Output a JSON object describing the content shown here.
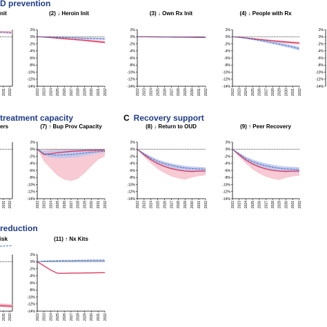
{
  "sections": {
    "a_suffix": "D prevention",
    "b_suffix": "treatment capacity",
    "c_letter": "C",
    "c_title": "Recovery support",
    "d_suffix": "reduction"
  },
  "colors": {
    "intervention": "#d6335a",
    "intervention_band": "#f4b8c6",
    "comparison": "#3a6fc4",
    "comparison_band": "#b9c6ec",
    "baseline": "#000000"
  },
  "chart_data": [
    {
      "type": "line",
      "title": "(2) ↓ Heroin Init",
      "x": [
        2022,
        2023,
        2024,
        2025,
        2026,
        2027,
        2028,
        2029,
        2030,
        2031,
        2032
      ],
      "y_ticks": [
        "2%",
        "0%",
        "-2%",
        "-4%",
        "-6%",
        "-8%",
        "-10%",
        "-12%",
        "-14%"
      ],
      "ylim": [
        -14,
        2
      ],
      "grid": false,
      "series": [
        {
          "role": "intervention",
          "values": [
            0,
            -0.1,
            -0.25,
            -0.4,
            -0.55,
            -0.7,
            -0.85,
            -1.0,
            -1.2,
            -1.4,
            -1.6
          ],
          "band_low": [
            0,
            -0.15,
            -0.35,
            -0.55,
            -0.75,
            -0.95,
            -1.15,
            -1.35,
            -1.55,
            -1.75,
            -1.95
          ],
          "band_high": [
            0,
            -0.05,
            -0.15,
            -0.25,
            -0.35,
            -0.45,
            -0.55,
            -0.65,
            -0.8,
            -0.95,
            -1.1
          ]
        },
        {
          "role": "comparison",
          "values": [
            0,
            -0.05,
            -0.1,
            -0.15,
            -0.2,
            -0.3,
            -0.35,
            -0.45,
            -0.5,
            -0.55,
            -0.6
          ],
          "band_low": [
            0,
            -0.1,
            -0.2,
            -0.3,
            -0.4,
            -0.5,
            -0.6,
            -0.7,
            -0.75,
            -0.8,
            -0.85
          ],
          "band_high": [
            0,
            0,
            -0.05,
            -0.05,
            -0.05,
            -0.1,
            -0.15,
            -0.2,
            -0.25,
            -0.3,
            -0.35
          ]
        }
      ]
    },
    {
      "type": "line",
      "title": "(3) ↓ Own Rx Init",
      "x": [
        2022,
        2023,
        2024,
        2025,
        2026,
        2027,
        2028,
        2029,
        2030,
        2031,
        2032
      ],
      "y_ticks": [
        "2%",
        "0%",
        "-2%",
        "-4%",
        "-6%",
        "-8%",
        "-10%",
        "-12%",
        "-14%"
      ],
      "ylim": [
        -14,
        2
      ],
      "grid": false,
      "series": [
        {
          "role": "intervention",
          "values": [
            0,
            -0.02,
            -0.04,
            -0.06,
            -0.08,
            -0.1,
            -0.12,
            -0.14,
            -0.16,
            -0.18,
            -0.2
          ],
          "band_low": [
            0,
            -0.04,
            -0.07,
            -0.1,
            -0.13,
            -0.16,
            -0.19,
            -0.22,
            -0.25,
            -0.28,
            -0.3
          ],
          "band_high": [
            0,
            -0.01,
            -0.02,
            -0.03,
            -0.04,
            -0.05,
            -0.06,
            -0.07,
            -0.08,
            -0.09,
            -0.1
          ]
        },
        {
          "role": "comparison",
          "values": [
            0,
            -0.01,
            -0.02,
            -0.03,
            -0.04,
            -0.05,
            -0.06,
            -0.07,
            -0.08,
            -0.09,
            -0.1
          ],
          "band_low": [
            0,
            -0.02,
            -0.04,
            -0.06,
            -0.08,
            -0.1,
            -0.12,
            -0.14,
            -0.16,
            -0.18,
            -0.2
          ],
          "band_high": [
            0,
            0,
            0,
            0,
            0,
            0,
            0,
            0,
            0,
            0,
            0
          ]
        }
      ]
    },
    {
      "type": "line",
      "title": "(4) ↓ People with Rx",
      "x": [
        2022,
        2023,
        2024,
        2025,
        2026,
        2027,
        2028,
        2029,
        2030,
        2031,
        2032
      ],
      "y_ticks": [
        "2%",
        "0%",
        "-2%",
        "-4%",
        "-6%",
        "-8%",
        "-10%",
        "-12%",
        "-14%"
      ],
      "ylim": [
        -14,
        2
      ],
      "grid": false,
      "series": [
        {
          "role": "intervention",
          "values": [
            0,
            -0.15,
            -0.35,
            -0.55,
            -0.75,
            -0.95,
            -1.15,
            -1.35,
            -1.5,
            -1.65,
            -1.8
          ],
          "band_low": [
            0,
            -0.2,
            -0.45,
            -0.7,
            -0.95,
            -1.2,
            -1.45,
            -1.7,
            -1.9,
            -2.1,
            -2.3
          ],
          "band_high": [
            0,
            -0.1,
            -0.25,
            -0.4,
            -0.55,
            -0.7,
            -0.85,
            -1.0,
            -1.15,
            -1.3,
            -1.4
          ]
        },
        {
          "role": "comparison",
          "values": [
            0,
            -0.2,
            -0.4,
            -0.7,
            -1.0,
            -1.3,
            -1.7,
            -2.1,
            -2.5,
            -2.9,
            -3.4
          ],
          "band_low": [
            0,
            -0.3,
            -0.6,
            -0.95,
            -1.3,
            -1.7,
            -2.1,
            -2.5,
            -2.95,
            -3.4,
            -3.9
          ],
          "band_high": [
            0,
            -0.1,
            -0.25,
            -0.45,
            -0.7,
            -0.95,
            -1.25,
            -1.6,
            -2.0,
            -2.4,
            -2.8
          ]
        }
      ]
    },
    {
      "type": "line",
      "title": "(7) ↑ Bup Prov Capacity",
      "x": [
        2022,
        2023,
        2024,
        2025,
        2026,
        2027,
        2028,
        2029,
        2030,
        2031,
        2032
      ],
      "y_ticks": [
        "2%",
        "0%",
        "-2%",
        "-4%",
        "-6%",
        "-8%",
        "-10%",
        "-12%",
        "-14%"
      ],
      "ylim": [
        -14,
        2
      ],
      "grid": false,
      "series": [
        {
          "role": "intervention",
          "values": [
            0,
            -1.5,
            -1.3,
            -1.0,
            -0.8,
            -0.6,
            -0.5,
            -0.4,
            -0.35,
            -0.3,
            -0.3
          ],
          "band_low": [
            0,
            -3.5,
            -5.5,
            -7.5,
            -8.6,
            -9.0,
            -8.4,
            -6.8,
            -4.8,
            -3.0,
            -2.0
          ],
          "band_high": [
            0,
            -0.2,
            0,
            0,
            0,
            0,
            0,
            0,
            0,
            0,
            0
          ]
        },
        {
          "role": "comparison",
          "values": [
            0,
            -1.3,
            -1.6,
            -1.7,
            -1.6,
            -1.5,
            -1.3,
            -1.1,
            -0.9,
            -0.7,
            -0.6
          ],
          "band_low": [
            0,
            -1.8,
            -2.4,
            -2.5,
            -2.5,
            -2.4,
            -2.2,
            -1.9,
            -1.5,
            -1.1,
            -0.9
          ],
          "band_high": [
            0,
            -0.5,
            -0.4,
            -0.3,
            -0.2,
            -0.1,
            0,
            0,
            0,
            0,
            0
          ]
        }
      ]
    },
    {
      "type": "line",
      "title": "(8) ↓ Return to OUD",
      "x": [
        2022,
        2023,
        2024,
        2025,
        2026,
        2027,
        2028,
        2029,
        2030,
        2031,
        2032
      ],
      "y_ticks": [
        "2%",
        "0%",
        "-2%",
        "-4%",
        "-6%",
        "-8%",
        "-10%",
        "-12%",
        "-14%"
      ],
      "ylim": [
        -14,
        2
      ],
      "grid": false,
      "series": [
        {
          "role": "intervention",
          "values": [
            0,
            -1.6,
            -3.0,
            -4.1,
            -4.9,
            -5.5,
            -5.9,
            -6.2,
            -6.3,
            -6.2,
            -6.2
          ],
          "band_low": [
            0,
            -2.2,
            -4.0,
            -5.6,
            -6.8,
            -7.7,
            -8.3,
            -8.6,
            -8.0,
            -7.6,
            -7.4
          ],
          "band_high": [
            0,
            -1.0,
            -2.2,
            -3.1,
            -3.8,
            -4.3,
            -4.7,
            -5.0,
            -5.2,
            -5.2,
            -5.3
          ]
        },
        {
          "role": "comparison",
          "values": [
            0,
            -1.4,
            -2.6,
            -3.5,
            -4.1,
            -4.6,
            -5.0,
            -5.3,
            -5.5,
            -5.6,
            -5.7
          ],
          "band_low": [
            0,
            -1.8,
            -3.2,
            -4.2,
            -4.9,
            -5.4,
            -5.8,
            -6.1,
            -6.3,
            -6.4,
            -6.5
          ],
          "band_high": [
            0,
            -1.0,
            -2.0,
            -2.9,
            -3.5,
            -4.0,
            -4.4,
            -4.7,
            -4.9,
            -5.0,
            -5.1
          ]
        }
      ]
    },
    {
      "type": "line",
      "title": "(9) ↑ Peer Recovery",
      "x": [
        2022,
        2023,
        2024,
        2025,
        2026,
        2027,
        2028,
        2029,
        2030,
        2031,
        2032
      ],
      "y_ticks": [
        "2%",
        "0%",
        "-2%",
        "-4%",
        "-6%",
        "-8%",
        "-10%",
        "-12%",
        "-14%"
      ],
      "ylim": [
        -14,
        2
      ],
      "grid": false,
      "series": [
        {
          "role": "intervention",
          "values": [
            0,
            -1.6,
            -3.1,
            -4.2,
            -5.0,
            -5.6,
            -6.0,
            -6.2,
            -6.3,
            -6.2,
            -6.2
          ],
          "band_low": [
            0,
            -2.2,
            -4.1,
            -5.7,
            -6.9,
            -7.8,
            -8.4,
            -8.7,
            -8.1,
            -7.7,
            -7.5
          ],
          "band_high": [
            0,
            -1.0,
            -2.2,
            -3.1,
            -3.9,
            -4.4,
            -4.8,
            -5.1,
            -5.2,
            -5.3,
            -5.3
          ]
        },
        {
          "role": "comparison",
          "values": [
            0,
            -1.4,
            -2.7,
            -3.6,
            -4.2,
            -4.7,
            -5.1,
            -5.4,
            -5.6,
            -5.7,
            -5.8
          ],
          "band_low": [
            0,
            -1.8,
            -3.3,
            -4.3,
            -5.0,
            -5.5,
            -5.9,
            -6.2,
            -6.4,
            -6.5,
            -6.6
          ],
          "band_high": [
            0,
            -1.0,
            -2.1,
            -2.9,
            -3.5,
            -4.0,
            -4.4,
            -4.7,
            -4.9,
            -5.0,
            -5.1
          ]
        }
      ]
    },
    {
      "type": "line",
      "title": "(11) ↑ Nx Kits",
      "x": [
        2022,
        2023,
        2024,
        2025,
        2026,
        2027,
        2028,
        2029,
        2030,
        2031,
        2032
      ],
      "y_ticks": [
        "2%",
        "0%",
        "-2%",
        "-4%",
        "-6%",
        "-8%",
        "-10%",
        "-12%",
        "-14%"
      ],
      "ylim": [
        -14,
        2
      ],
      "grid": false,
      "series": [
        {
          "role": "intervention",
          "values": [
            0,
            -1.2,
            -2.4,
            -3.3,
            -3.3,
            -3.25,
            -3.25,
            -3.2,
            -3.2,
            -3.15,
            -3.1
          ],
          "band_low": [
            0,
            -1.3,
            -2.5,
            -3.45,
            -3.45,
            -3.4,
            -3.4,
            -3.35,
            -3.35,
            -3.3,
            -3.3
          ],
          "band_high": [
            0,
            -1.1,
            -2.3,
            -3.15,
            -3.15,
            -3.1,
            -3.1,
            -3.05,
            -3.05,
            -3.0,
            -2.95
          ]
        },
        {
          "role": "comparison",
          "values": [
            0,
            0.15,
            0.2,
            0.25,
            0.3,
            0.3,
            0.35,
            0.35,
            0.4,
            0.4,
            0.4
          ],
          "band_low": [
            0,
            0,
            0,
            0,
            0,
            0,
            0,
            0,
            0,
            0,
            0
          ],
          "band_high": [
            0,
            0.3,
            0.4,
            0.45,
            0.5,
            0.5,
            0.55,
            0.55,
            0.6,
            0.6,
            0.6
          ]
        }
      ]
    }
  ],
  "partial_panels": {
    "p1_title": "nit",
    "p1_ticks": [
      "2031",
      "2032"
    ],
    "p6_title": "ers",
    "p6_ticks": [
      "2031",
      "2032"
    ],
    "p10_title": "isk",
    "p10_ticks": [
      "2031",
      "2032"
    ],
    "p5_ticks": [
      "2%",
      "0%",
      "-2%",
      "-4%",
      "-6%",
      "-8%",
      "-10%",
      "-12%",
      "-14%"
    ]
  }
}
